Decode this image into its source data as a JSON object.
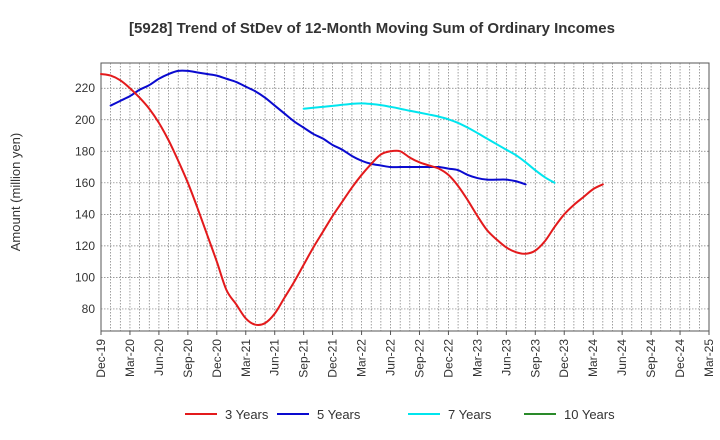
{
  "chart_data": {
    "type": "line",
    "title": "[5928]  Trend of StDev of 12-Month Moving Sum of Ordinary Incomes",
    "xlabel": "",
    "ylabel": "Amount (million yen)",
    "ylim": [
      66,
      236
    ],
    "yticks": [
      80,
      100,
      120,
      140,
      160,
      180,
      200,
      220
    ],
    "xticks": [
      "Dec-19",
      "Mar-20",
      "Jun-20",
      "Sep-20",
      "Dec-20",
      "Mar-21",
      "Jun-21",
      "Sep-21",
      "Dec-21",
      "Mar-22",
      "Jun-22",
      "Sep-22",
      "Dec-22",
      "Mar-23",
      "Jun-23",
      "Sep-23",
      "Dec-23",
      "Mar-24",
      "Jun-24",
      "Sep-24",
      "Dec-24",
      "Mar-25"
    ],
    "grid": true,
    "legend_position": "bottom",
    "series": [
      {
        "name": "3 Years",
        "color": "#e31a1c",
        "points": [
          [
            0,
            229
          ],
          [
            1,
            228
          ],
          [
            2,
            225
          ],
          [
            3,
            220
          ],
          [
            4,
            214
          ],
          [
            5,
            207
          ],
          [
            6,
            198
          ],
          [
            7,
            187
          ],
          [
            8,
            174
          ],
          [
            9,
            160
          ],
          [
            10,
            144
          ],
          [
            11,
            127
          ],
          [
            12,
            110
          ],
          [
            13,
            92
          ],
          [
            14,
            83
          ],
          [
            15,
            74
          ],
          [
            16,
            70
          ],
          [
            17,
            71
          ],
          [
            18,
            77
          ],
          [
            19,
            87
          ],
          [
            20,
            97
          ],
          [
            21,
            108
          ],
          [
            22,
            119
          ],
          [
            23,
            129
          ],
          [
            24,
            139
          ],
          [
            25,
            148
          ],
          [
            26,
            157
          ],
          [
            27,
            165
          ],
          [
            28,
            172
          ],
          [
            29,
            178
          ],
          [
            30,
            180
          ],
          [
            31,
            180
          ],
          [
            32,
            176
          ],
          [
            33,
            173
          ],
          [
            34,
            171
          ],
          [
            35,
            169
          ],
          [
            36,
            165
          ],
          [
            37,
            158
          ],
          [
            38,
            149
          ],
          [
            39,
            139
          ],
          [
            40,
            130
          ],
          [
            41,
            124
          ],
          [
            42,
            119
          ],
          [
            43,
            116
          ],
          [
            44,
            115
          ],
          [
            45,
            117
          ],
          [
            46,
            123
          ],
          [
            47,
            132
          ],
          [
            48,
            140
          ],
          [
            49,
            146
          ],
          [
            50,
            151
          ],
          [
            51,
            156
          ],
          [
            52,
            159
          ]
        ]
      },
      {
        "name": "5 Years",
        "color": "#0a0acf",
        "points": [
          [
            1,
            209
          ],
          [
            2,
            212
          ],
          [
            3,
            215
          ],
          [
            4,
            219
          ],
          [
            5,
            222
          ],
          [
            6,
            226
          ],
          [
            7,
            229
          ],
          [
            8,
            231
          ],
          [
            9,
            231
          ],
          [
            10,
            230
          ],
          [
            11,
            229
          ],
          [
            12,
            228
          ],
          [
            13,
            226
          ],
          [
            14,
            224
          ],
          [
            15,
            221
          ],
          [
            16,
            218
          ],
          [
            17,
            214
          ],
          [
            18,
            209
          ],
          [
            19,
            204
          ],
          [
            20,
            199
          ],
          [
            21,
            195
          ],
          [
            22,
            191
          ],
          [
            23,
            188
          ],
          [
            24,
            184
          ],
          [
            25,
            181
          ],
          [
            26,
            177
          ],
          [
            27,
            174
          ],
          [
            28,
            172
          ],
          [
            29,
            171
          ],
          [
            30,
            170
          ],
          [
            31,
            170
          ],
          [
            32,
            170
          ],
          [
            33,
            170
          ],
          [
            34,
            170
          ],
          [
            35,
            170
          ],
          [
            36,
            169
          ],
          [
            37,
            168
          ],
          [
            38,
            165
          ],
          [
            39,
            163
          ],
          [
            40,
            162
          ],
          [
            41,
            162
          ],
          [
            42,
            162
          ],
          [
            43,
            161
          ],
          [
            44,
            159
          ]
        ]
      },
      {
        "name": "7 Years",
        "color": "#00e5ee",
        "points": [
          [
            21,
            207
          ],
          [
            22,
            207.6
          ],
          [
            23,
            208.2
          ],
          [
            24,
            208.8
          ],
          [
            25,
            209.5
          ],
          [
            26,
            210.1
          ],
          [
            27,
            210.4
          ],
          [
            28,
            210
          ],
          [
            29,
            209.3
          ],
          [
            30,
            208.2
          ],
          [
            31,
            207
          ],
          [
            32,
            205.7
          ],
          [
            33,
            204.5
          ],
          [
            34,
            203.3
          ],
          [
            35,
            202
          ],
          [
            36,
            200.3
          ],
          [
            37,
            198
          ],
          [
            38,
            195
          ],
          [
            39,
            191.6
          ],
          [
            40,
            188
          ],
          [
            41,
            184.5
          ],
          [
            42,
            181
          ],
          [
            43,
            177.5
          ],
          [
            44,
            173
          ],
          [
            45,
            168
          ],
          [
            46,
            163.5
          ],
          [
            47,
            160
          ]
        ]
      },
      {
        "name": "10 Years",
        "color": "#2a8a2a",
        "points": []
      }
    ]
  }
}
